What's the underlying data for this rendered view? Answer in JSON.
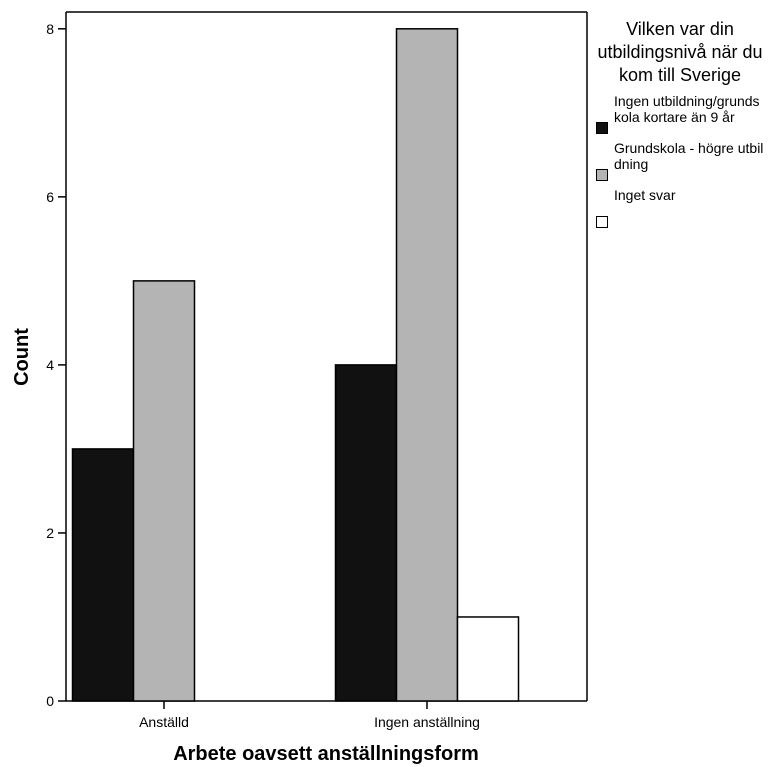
{
  "chart_data": {
    "type": "bar",
    "categories": [
      "Anställd",
      "Ingen anställning"
    ],
    "series": [
      {
        "name": "Ingen utbildning/grundskola kortare än 9 år",
        "values": [
          3,
          4
        ],
        "color": "#111111"
      },
      {
        "name": "Grundskola - högre utbildning",
        "values": [
          5,
          8
        ],
        "color": "#b4b4b4"
      },
      {
        "name": "Inget svar",
        "values": [
          0,
          1
        ],
        "color": "#ffffff"
      }
    ],
    "xlabel": "Arbete oavsett anställningsform",
    "ylabel": "Count",
    "ylim": [
      0,
      8.2
    ],
    "yticks": [
      0,
      2,
      4,
      6,
      8
    ],
    "grid": false,
    "legend": {
      "title": "Vilken var din utbildingsnivå när du kom till Sverige",
      "placement": "right"
    }
  }
}
